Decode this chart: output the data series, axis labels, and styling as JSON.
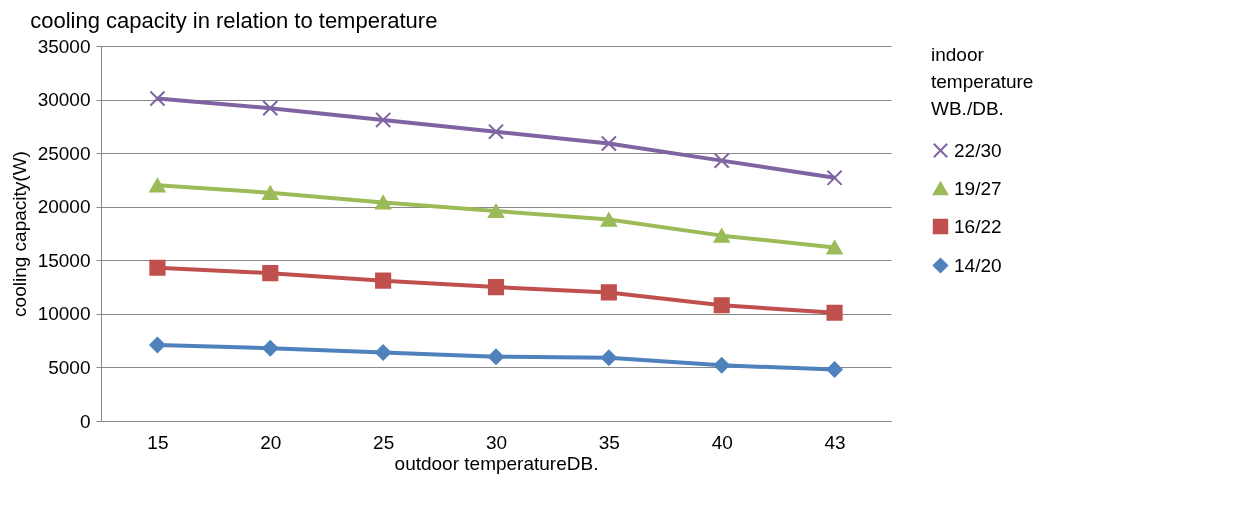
{
  "chart_data": {
    "type": "line",
    "title": "cooling capacity in relation to temperature",
    "xlabel": "outdoor temperatureDB.",
    "ylabel": "cooling capacity(W)",
    "legend_title": "indoor temperature WB./DB.",
    "categories": [
      "15",
      "20",
      "25",
      "30",
      "35",
      "40",
      "43"
    ],
    "series": [
      {
        "name": "22/30",
        "color": "#8064a2",
        "marker": "cross",
        "values": [
          30100,
          29200,
          28100,
          27000,
          25900,
          24300,
          22700
        ]
      },
      {
        "name": "19/27",
        "color": "#9bbb59",
        "marker": "triangle",
        "values": [
          22000,
          21300,
          20400,
          19600,
          18800,
          17300,
          16200
        ]
      },
      {
        "name": "16/22",
        "color": "#c0504d",
        "marker": "square",
        "values": [
          14300,
          13800,
          13100,
          12500,
          12000,
          10800,
          10100
        ]
      },
      {
        "name": "14/20",
        "color": "#4f81bd",
        "marker": "diamond",
        "values": [
          7100,
          6800,
          6400,
          6000,
          5900,
          5200,
          4800
        ]
      }
    ],
    "ylim": [
      0,
      35000
    ],
    "yticks": [
      0,
      5000,
      10000,
      15000,
      20000,
      25000,
      30000,
      35000
    ],
    "grid": "y",
    "legend": "right"
  }
}
